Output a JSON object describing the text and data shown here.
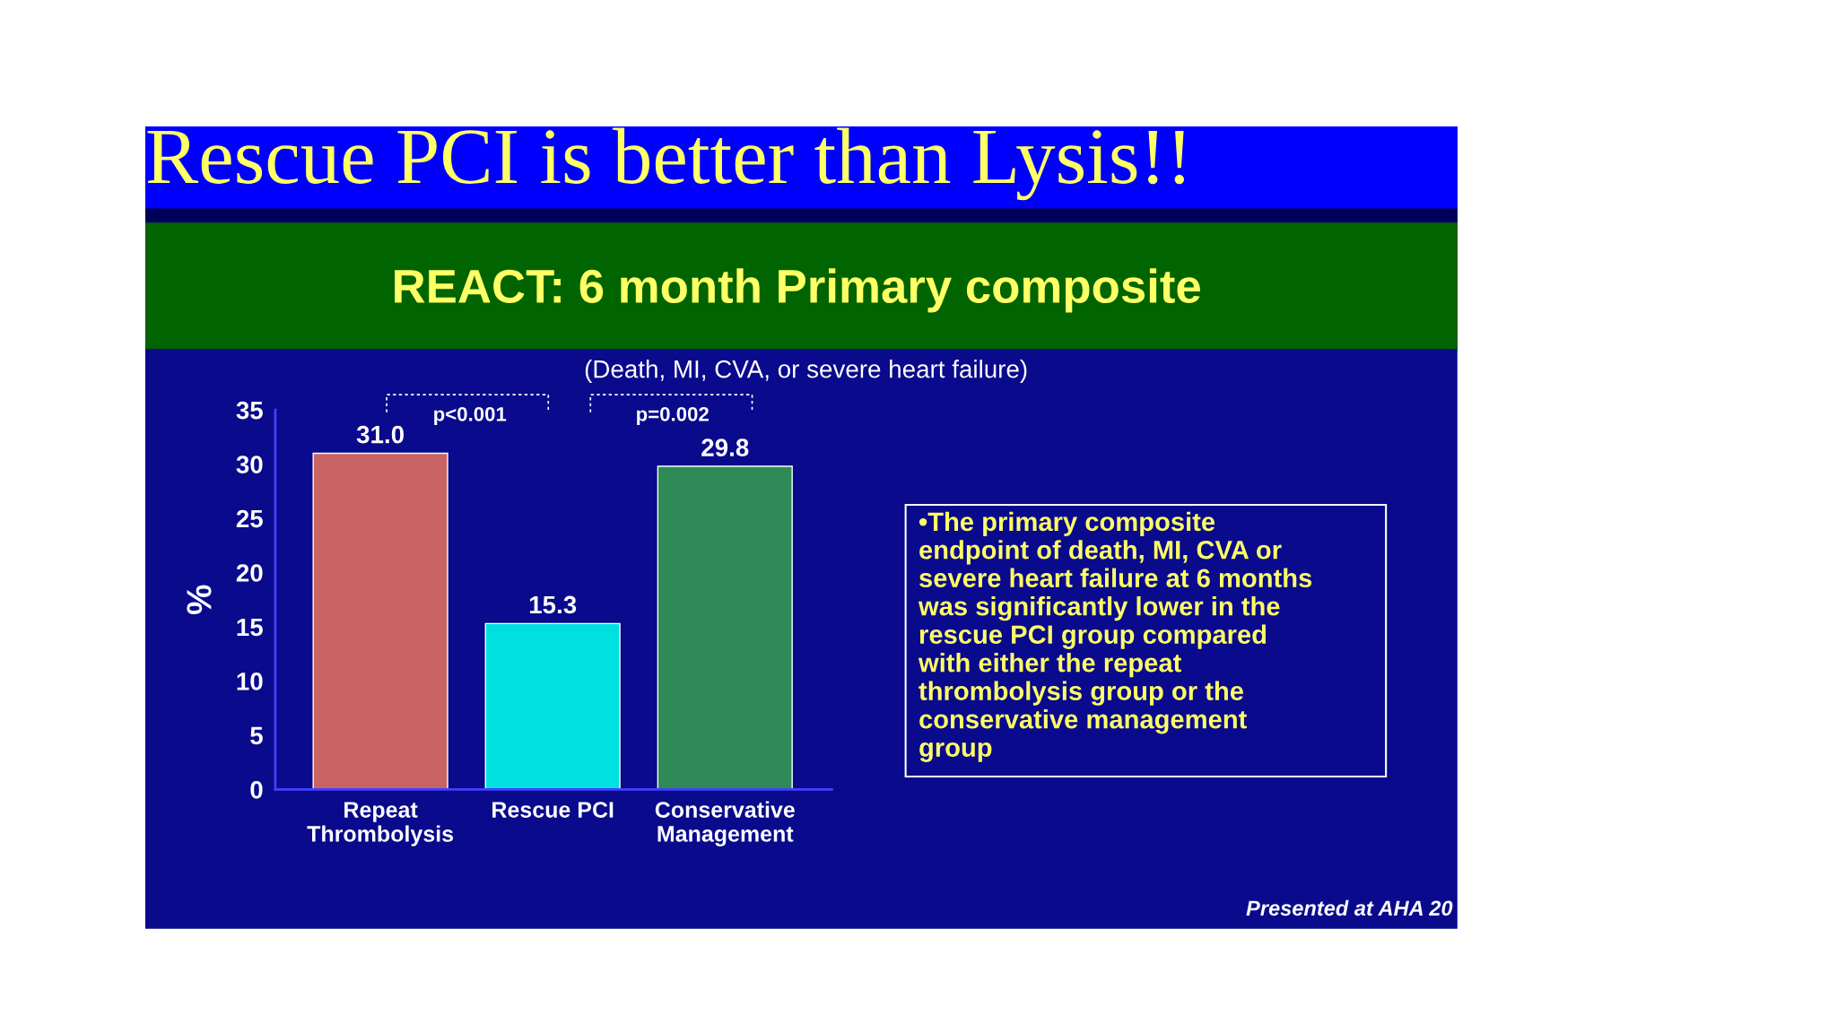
{
  "chart_data": {
    "type": "bar",
    "title": "Rescue PCI is better than Lysis!!",
    "subtitle": "REACT: 6 month Primary composite",
    "ylabel": "%",
    "categories": [
      "Repeat\nThrombolysis",
      "Rescue PCI",
      "Conservative\nManagement"
    ],
    "values": [
      31.0,
      15.3,
      29.8
    ],
    "colors": [
      "#c86464",
      "#00e0e0",
      "#2e8b57"
    ],
    "value_labels": [
      "31.0",
      "15.3",
      "29.8"
    ],
    "ylim": [
      0,
      35
    ],
    "yticks": [
      0,
      5,
      10,
      15,
      20,
      25,
      30,
      35
    ],
    "grid": false,
    "legend": false,
    "annotations": [
      "(Death, MI, CVA, or severe heart failure)",
      "p<0.001",
      "p=0.002",
      "•The primary composite\nendpoint of death, MI, CVA or\nsevere heart failure at 6 months\nwas significantly lower in the\nrescue PCI group compared\nwith either the repeat\nthrombolysis group or the\nconservative management\ngroup",
      "Presented at AHA 20"
    ]
  }
}
